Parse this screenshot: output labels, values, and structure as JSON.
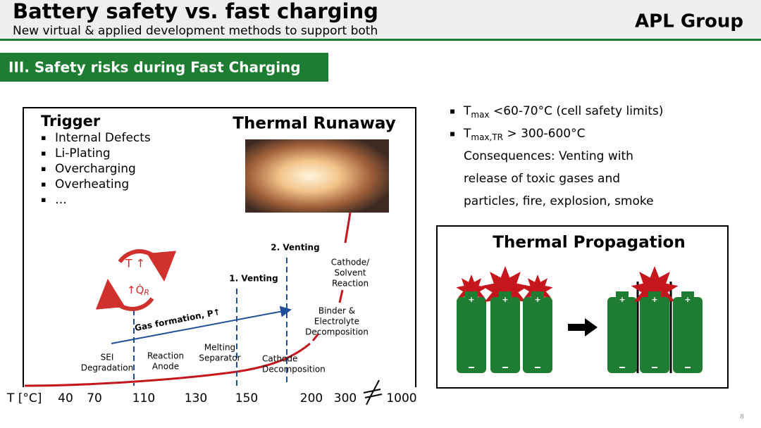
{
  "header": {
    "title": "Battery safety vs. fast charging",
    "subtitle": "New virtual & applied development methods to support both",
    "logo": "APL Group"
  },
  "section": "III. Safety risks during Fast Charging",
  "diagram": {
    "trigger_title": "Trigger",
    "triggers": [
      "Internal Defects",
      "Li-Plating",
      "Overcharging",
      "Overheating",
      "…"
    ],
    "runaway_title": "Thermal Runaway",
    "cycle": {
      "top": "T ↑",
      "bottom": "↑Q̇",
      "bottom_sub": "R"
    },
    "gas": "Gas formation, P↑",
    "venting_1": "1. Venting",
    "venting_2": "2. Venting",
    "events": [
      {
        "lines": [
          "SEI",
          "Degradation"
        ]
      },
      {
        "lines": [
          "Reaction",
          "Anode"
        ]
      },
      {
        "lines": [
          "Melting",
          "Separator"
        ]
      },
      {
        "lines": [
          "Cathode",
          "Decomposition"
        ]
      },
      {
        "lines": [
          "Binder &",
          "Electrolyte",
          "Decomposition"
        ]
      },
      {
        "lines": [
          "Cathode/",
          "Solvent",
          "Reaction"
        ]
      }
    ],
    "axis_label": "T [°C]",
    "axis_ticks": [
      "40",
      "70",
      "110",
      "130",
      "150",
      "200",
      "300",
      "1000"
    ]
  },
  "limits": [
    {
      "main": "T",
      "sub": "max",
      "rest": " <60-70°C (cell safety limits)"
    },
    {
      "main": "T",
      "sub": "max,TR",
      "rest": " > 300-600°C"
    }
  ],
  "consequences": [
    "Consequences: Venting with",
    "release of toxic gases and",
    "particles, fire, explosion, smoke"
  ],
  "propagation_title": "Thermal Propagation",
  "page_number": "8"
}
